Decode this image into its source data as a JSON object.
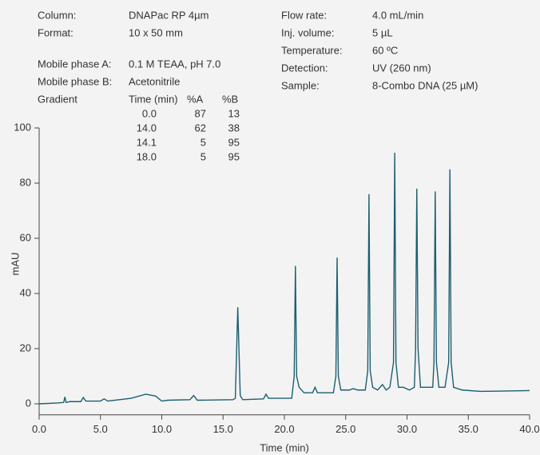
{
  "chart_data": {
    "type": "line",
    "info_left": [
      {
        "label": "Column:",
        "value": "DNAPac RP 4µm"
      },
      {
        "label": "Format:",
        "value": "10 x 50 mm"
      },
      {
        "label": "Mobile phase A:",
        "value": "0.1 M TEAA, pH 7.0"
      },
      {
        "label": "Mobile phase B:",
        "value": "Acetonitrile"
      }
    ],
    "info_right": [
      {
        "label": "Flow rate:",
        "value": "4.0 mL/min"
      },
      {
        "label": "Inj. volume:",
        "value": "5 µL"
      },
      {
        "label": "Temperature:",
        "value": "60 ºC"
      },
      {
        "label": "Detection:",
        "value": "UV (260 nm)"
      },
      {
        "label": "Sample:",
        "value": "8-Combo DNA (25 µM)"
      }
    ],
    "gradient": {
      "label": "Gradient",
      "header": [
        "Time (min)",
        "%A",
        "%B"
      ],
      "rows": [
        [
          "0.0",
          87,
          13
        ],
        [
          "14.0",
          62,
          38
        ],
        [
          "14.1",
          5,
          95
        ],
        [
          "18.0",
          5,
          95
        ]
      ]
    },
    "x_label": "Time (min)",
    "y_label": "mAU",
    "xlim": [
      0,
      40
    ],
    "ylim": [
      -4,
      100
    ],
    "xticks": [
      {
        "value": 0,
        "label": "0.0"
      },
      {
        "value": 5,
        "label": "5.0"
      },
      {
        "value": 10,
        "label": "10.0"
      },
      {
        "value": 15,
        "label": "15.0"
      },
      {
        "value": 20,
        "label": "20.0"
      },
      {
        "value": 25,
        "label": "25.0"
      },
      {
        "value": 30,
        "label": "30.0"
      },
      {
        "value": 35,
        "label": "35.0"
      },
      {
        "value": 40,
        "label": "40.0"
      }
    ],
    "yticks": [
      0,
      20,
      40,
      60,
      80,
      100
    ],
    "x": [
      0,
      1.5,
      2.0,
      2.1,
      2.2,
      2.5,
      3.4,
      3.6,
      3.8,
      5.0,
      5.3,
      5.6,
      6.0,
      7.5,
      8.7,
      9.5,
      10.0,
      10.5,
      12.3,
      12.6,
      12.9,
      15.8,
      16.0,
      16.2,
      16.4,
      16.6,
      18.3,
      18.5,
      18.7,
      20.6,
      20.8,
      20.9,
      21.0,
      21.2,
      21.6,
      22.3,
      22.5,
      22.7,
      24.0,
      24.2,
      24.3,
      24.4,
      24.6,
      25.3,
      25.6,
      26.0,
      26.6,
      26.8,
      26.9,
      27.0,
      27.2,
      27.6,
      28.0,
      28.3,
      28.6,
      28.9,
      29.0,
      29.1,
      29.3,
      29.7,
      30.2,
      30.6,
      30.7,
      30.8,
      30.9,
      31.1,
      31.6,
      32.1,
      32.2,
      32.3,
      32.4,
      32.6,
      33.1,
      33.4,
      33.5,
      33.6,
      33.8,
      34.5,
      36.0,
      40.0
    ],
    "series": [
      {
        "color": "#1d5e70",
        "values": [
          0,
          0.3,
          0.5,
          2.5,
          0.5,
          0.8,
          0.8,
          2.3,
          1.0,
          1.0,
          1.8,
          1.0,
          1.2,
          2.0,
          3.5,
          2.8,
          1.0,
          1.3,
          1.5,
          3.0,
          1.3,
          1.5,
          2.0,
          35,
          3.0,
          1.5,
          1.8,
          3.5,
          2.0,
          2.0,
          10,
          50,
          10,
          6,
          4,
          4,
          6,
          4,
          4,
          10,
          53,
          10,
          5,
          5,
          5.5,
          5,
          5,
          12,
          76,
          12,
          6,
          5,
          7,
          5,
          6,
          15,
          91,
          15,
          6,
          6,
          5,
          6,
          20,
          78,
          20,
          6,
          6,
          6,
          15,
          77,
          15,
          6,
          6,
          15,
          85,
          15,
          6,
          5,
          4.5,
          4.8
        ]
      }
    ]
  }
}
